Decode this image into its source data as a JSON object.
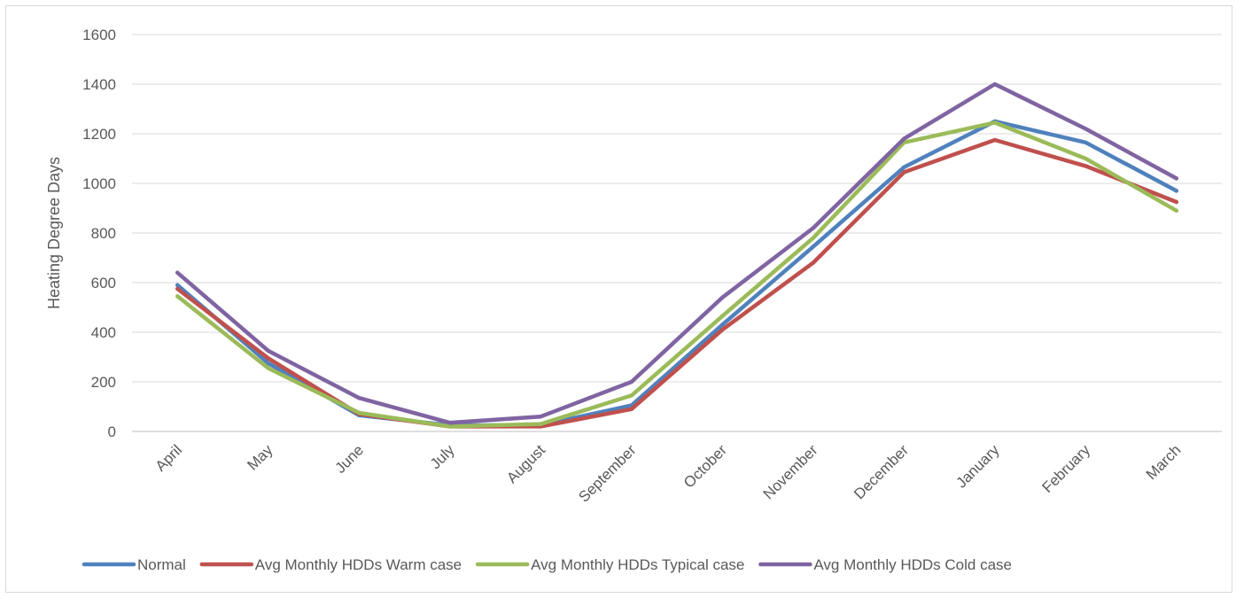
{
  "chart_data": {
    "type": "line",
    "title": "",
    "xlabel": "",
    "ylabel": "Heating Degree Days",
    "ylim": [
      0,
      1600
    ],
    "yticks": [
      0,
      200,
      400,
      600,
      800,
      1000,
      1200,
      1400,
      1600
    ],
    "grid": true,
    "legend_position": "bottom",
    "categories": [
      "April",
      "May",
      "June",
      "July",
      "August",
      "September",
      "October",
      "November",
      "December",
      "January",
      "February",
      "March"
    ],
    "series": [
      {
        "name": "Normal",
        "color": "#4f81bd",
        "values": [
          590,
          275,
          65,
          25,
          25,
          105,
          430,
          745,
          1065,
          1250,
          1165,
          970
        ]
      },
      {
        "name": "Avg Monthly HDDs Warm case",
        "color": "#c0504d",
        "values": [
          575,
          295,
          70,
          20,
          20,
          90,
          410,
          680,
          1045,
          1175,
          1070,
          925
        ]
      },
      {
        "name": "Avg Monthly HDDs Typical case",
        "color": "#9bbb59",
        "values": [
          545,
          255,
          75,
          20,
          30,
          145,
          465,
          780,
          1165,
          1245,
          1100,
          890
        ]
      },
      {
        "name": "Avg Monthly HDDs Cold case",
        "color": "#8064a2",
        "values": [
          640,
          325,
          135,
          35,
          60,
          200,
          540,
          820,
          1180,
          1400,
          1220,
          1020
        ]
      }
    ]
  }
}
